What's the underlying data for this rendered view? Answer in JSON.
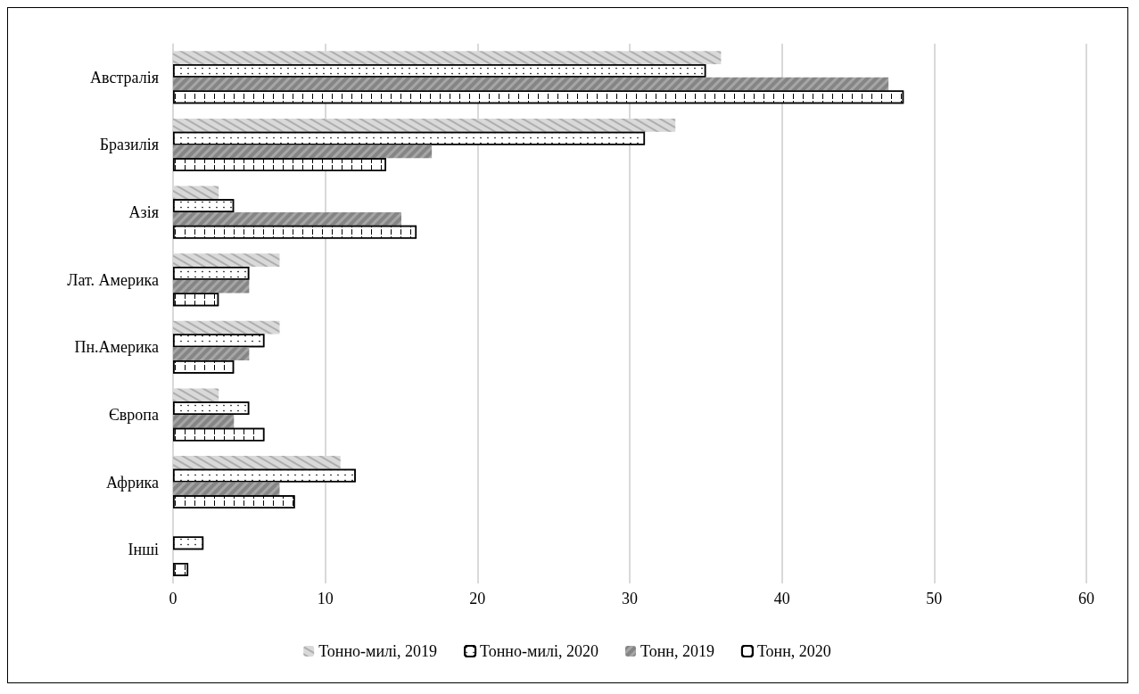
{
  "chart_data": {
    "type": "bar",
    "orientation": "horizontal",
    "categories": [
      "Австралія",
      "Бразилія",
      "Азія",
      "Лат. Америка",
      "Пн.Америка",
      "Європа",
      "Африка",
      "Інші"
    ],
    "series": [
      {
        "name": "Тонно-милі, 2019",
        "color": "#d9d9d9",
        "values": [
          36,
          33,
          3,
          7,
          7,
          3,
          11,
          0
        ]
      },
      {
        "name": "Тонно-милі, 2020",
        "color": "#ffffff",
        "values": [
          35,
          31,
          4,
          5,
          6,
          5,
          12,
          2
        ]
      },
      {
        "name": "Тонн, 2019",
        "color": "#a6a6a6",
        "values": [
          47,
          17,
          15,
          5,
          5,
          4,
          7,
          0
        ]
      },
      {
        "name": "Тонн, 2020",
        "color": "#ffffff",
        "values": [
          48,
          14,
          16,
          3,
          4,
          6,
          8,
          1
        ]
      }
    ],
    "xlim": [
      0,
      60
    ],
    "xticks": [
      0,
      10,
      20,
      30,
      40,
      50,
      60
    ],
    "grid": "x",
    "legend": "bottom"
  }
}
